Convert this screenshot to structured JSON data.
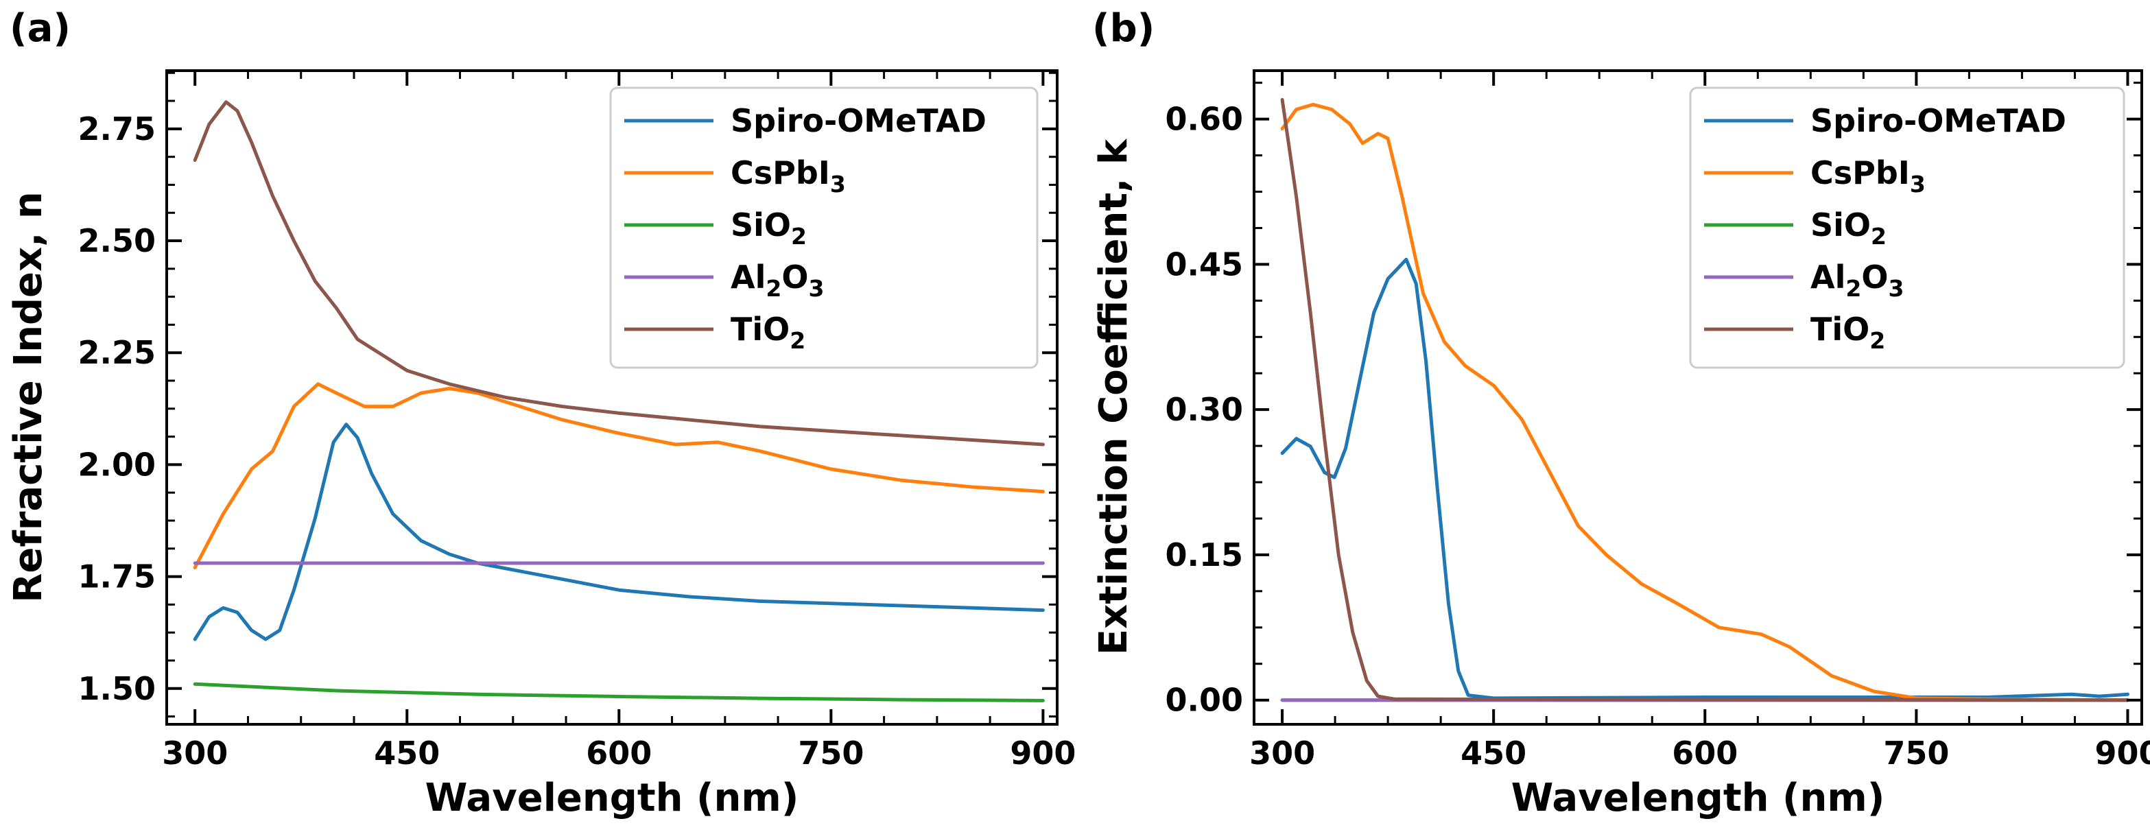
{
  "chart_data": [
    {
      "panel": "(a)",
      "type": "line",
      "xlabel": "Wavelength (nm)",
      "ylabel": "Refractive Index, n",
      "xlim": [
        280,
        910
      ],
      "ylim": [
        1.42,
        2.88
      ],
      "xticks": [
        300,
        450,
        600,
        750,
        900
      ],
      "yticks": [
        1.5,
        1.75,
        2.0,
        2.25,
        2.5,
        2.75
      ],
      "xticklabels": [
        "300",
        "450",
        "600",
        "750",
        "900"
      ],
      "yticklabels": [
        "1.50",
        "1.75",
        "2.00",
        "2.25",
        "2.50",
        "2.75"
      ],
      "legend": "top-right",
      "series": [
        {
          "name": "Spiro-OMeTAD",
          "base": "Spiro-OMeTAD",
          "sub": "",
          "color": "#1f77b4",
          "points": [
            [
              300,
              1.61
            ],
            [
              310,
              1.66
            ],
            [
              320,
              1.68
            ],
            [
              330,
              1.67
            ],
            [
              340,
              1.63
            ],
            [
              350,
              1.61
            ],
            [
              360,
              1.63
            ],
            [
              370,
              1.72
            ],
            [
              385,
              1.88
            ],
            [
              398,
              2.05
            ],
            [
              407,
              2.09
            ],
            [
              415,
              2.06
            ],
            [
              425,
              1.98
            ],
            [
              440,
              1.89
            ],
            [
              460,
              1.83
            ],
            [
              480,
              1.8
            ],
            [
              500,
              1.78
            ],
            [
              550,
              1.75
            ],
            [
              600,
              1.72
            ],
            [
              650,
              1.705
            ],
            [
              700,
              1.695
            ],
            [
              750,
              1.69
            ],
            [
              800,
              1.685
            ],
            [
              850,
              1.68
            ],
            [
              900,
              1.675
            ]
          ]
        },
        {
          "name": "CsPbI3",
          "base": "CsPbI",
          "sub": "3",
          "color": "#ff7f0e",
          "points": [
            [
              300,
              1.77
            ],
            [
              320,
              1.89
            ],
            [
              340,
              1.99
            ],
            [
              355,
              2.03
            ],
            [
              370,
              2.13
            ],
            [
              387,
              2.18
            ],
            [
              400,
              2.16
            ],
            [
              420,
              2.13
            ],
            [
              440,
              2.13
            ],
            [
              460,
              2.16
            ],
            [
              480,
              2.17
            ],
            [
              500,
              2.16
            ],
            [
              530,
              2.13
            ],
            [
              560,
              2.1
            ],
            [
              600,
              2.07
            ],
            [
              640,
              2.045
            ],
            [
              670,
              2.05
            ],
            [
              700,
              2.03
            ],
            [
              750,
              1.99
            ],
            [
              800,
              1.965
            ],
            [
              850,
              1.95
            ],
            [
              900,
              1.94
            ]
          ]
        },
        {
          "name": "SiO2",
          "base": "SiO",
          "sub": "2",
          "color": "#2ca02c",
          "points": [
            [
              300,
              1.51
            ],
            [
              400,
              1.495
            ],
            [
              500,
              1.487
            ],
            [
              600,
              1.482
            ],
            [
              700,
              1.478
            ],
            [
              800,
              1.475
            ],
            [
              900,
              1.473
            ]
          ]
        },
        {
          "name": "Al2O3",
          "base": "Al",
          "sub": "2",
          "base2": "O",
          "sub2": "3",
          "color": "#9467bd",
          "points": [
            [
              300,
              1.78
            ],
            [
              900,
              1.78
            ]
          ]
        },
        {
          "name": "TiO2",
          "base": "TiO",
          "sub": "2",
          "color": "#8c564b",
          "points": [
            [
              300,
              2.68
            ],
            [
              310,
              2.76
            ],
            [
              322,
              2.81
            ],
            [
              330,
              2.79
            ],
            [
              340,
              2.72
            ],
            [
              355,
              2.6
            ],
            [
              370,
              2.5
            ],
            [
              385,
              2.41
            ],
            [
              400,
              2.35
            ],
            [
              415,
              2.28
            ],
            [
              430,
              2.25
            ],
            [
              450,
              2.21
            ],
            [
              480,
              2.18
            ],
            [
              520,
              2.15
            ],
            [
              560,
              2.13
            ],
            [
              600,
              2.115
            ],
            [
              650,
              2.1
            ],
            [
              700,
              2.085
            ],
            [
              750,
              2.075
            ],
            [
              800,
              2.065
            ],
            [
              850,
              2.055
            ],
            [
              900,
              2.045
            ]
          ]
        }
      ]
    },
    {
      "panel": "(b)",
      "type": "line",
      "xlabel": "Wavelength (nm)",
      "ylabel": "Extinction Coefficient, k",
      "xlim": [
        280,
        910
      ],
      "ylim": [
        -0.025,
        0.65
      ],
      "xticks": [
        300,
        450,
        600,
        750,
        900
      ],
      "yticks": [
        0.0,
        0.15,
        0.3,
        0.45,
        0.6
      ],
      "xticklabels": [
        "300",
        "450",
        "600",
        "750",
        "900"
      ],
      "yticklabels": [
        "0.00",
        "0.15",
        "0.30",
        "0.45",
        "0.60"
      ],
      "legend": "top-right",
      "series": [
        {
          "name": "Spiro-OMeTAD",
          "base": "Spiro-OMeTAD",
          "sub": "",
          "color": "#1f77b4",
          "points": [
            [
              300,
              0.255
            ],
            [
              310,
              0.27
            ],
            [
              320,
              0.262
            ],
            [
              330,
              0.235
            ],
            [
              337,
              0.23
            ],
            [
              345,
              0.26
            ],
            [
              355,
              0.33
            ],
            [
              365,
              0.4
            ],
            [
              375,
              0.435
            ],
            [
              388,
              0.455
            ],
            [
              395,
              0.43
            ],
            [
              402,
              0.35
            ],
            [
              410,
              0.22
            ],
            [
              418,
              0.1
            ],
            [
              425,
              0.03
            ],
            [
              432,
              0.005
            ],
            [
              450,
              0.002
            ],
            [
              600,
              0.003
            ],
            [
              800,
              0.003
            ],
            [
              860,
              0.006
            ],
            [
              880,
              0.004
            ],
            [
              900,
              0.006
            ]
          ]
        },
        {
          "name": "CsPbI3",
          "base": "CsPbI",
          "sub": "3",
          "color": "#ff7f0e",
          "points": [
            [
              300,
              0.59
            ],
            [
              310,
              0.61
            ],
            [
              322,
              0.615
            ],
            [
              335,
              0.61
            ],
            [
              348,
              0.595
            ],
            [
              357,
              0.575
            ],
            [
              368,
              0.585
            ],
            [
              375,
              0.58
            ],
            [
              385,
              0.52
            ],
            [
              400,
              0.42
            ],
            [
              415,
              0.37
            ],
            [
              430,
              0.345
            ],
            [
              450,
              0.325
            ],
            [
              470,
              0.29
            ],
            [
              490,
              0.235
            ],
            [
              510,
              0.18
            ],
            [
              530,
              0.15
            ],
            [
              555,
              0.12
            ],
            [
              580,
              0.1
            ],
            [
              610,
              0.075
            ],
            [
              640,
              0.068
            ],
            [
              660,
              0.055
            ],
            [
              690,
              0.025
            ],
            [
              720,
              0.009
            ],
            [
              750,
              0.002
            ],
            [
              800,
              0.001
            ],
            [
              900,
              0.0
            ]
          ]
        },
        {
          "name": "SiO2",
          "base": "SiO",
          "sub": "2",
          "color": "#2ca02c",
          "points": [
            [
              300,
              0.0
            ],
            [
              900,
              0.0
            ]
          ]
        },
        {
          "name": "Al2O3",
          "base": "Al",
          "sub": "2",
          "base2": "O",
          "sub2": "3",
          "color": "#9467bd",
          "points": [
            [
              300,
              0.0
            ],
            [
              900,
              0.0
            ]
          ]
        },
        {
          "name": "TiO2",
          "base": "TiO",
          "sub": "2",
          "color": "#8c564b",
          "points": [
            [
              300,
              0.62
            ],
            [
              310,
              0.52
            ],
            [
              320,
              0.4
            ],
            [
              330,
              0.27
            ],
            [
              340,
              0.15
            ],
            [
              350,
              0.07
            ],
            [
              360,
              0.02
            ],
            [
              368,
              0.004
            ],
            [
              380,
              0.001
            ],
            [
              900,
              0.0
            ]
          ]
        }
      ]
    }
  ]
}
